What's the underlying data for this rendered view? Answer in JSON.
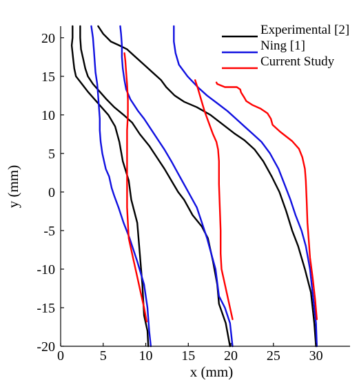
{
  "chart_data": {
    "type": "line",
    "xlabel": "x (mm)",
    "ylabel": "y (mm)",
    "xlim": [
      0,
      34
    ],
    "ylim": [
      -20,
      21.5
    ],
    "xticks": [
      "0",
      "5",
      "10",
      "15",
      "20",
      "25",
      "30"
    ],
    "yticks": [
      "20",
      "15",
      "10",
      "5",
      "0",
      "-5",
      "-10",
      "-15",
      "-20"
    ],
    "xtick_values": [
      0,
      5,
      10,
      15,
      20,
      25,
      30
    ],
    "ytick_values": [
      20,
      15,
      10,
      5,
      0,
      -5,
      -10,
      -15,
      -20
    ],
    "grid": false,
    "legend_position": "top-right",
    "series": [
      {
        "name": "Experimental [2]",
        "color": "#000000",
        "lines": [
          [
            [
              10.3,
              -20
            ],
            [
              10.2,
              -18
            ],
            [
              9.8,
              -16
            ],
            [
              9.6,
              -12
            ],
            [
              9.3,
              -8
            ],
            [
              9.0,
              -4
            ],
            [
              8.3,
              -1
            ],
            [
              8.0,
              1.5
            ],
            [
              7.3,
              4
            ],
            [
              6.9,
              6.5
            ],
            [
              6.4,
              8.5
            ],
            [
              5.6,
              10
            ],
            [
              4.8,
              11
            ],
            [
              4.0,
              12
            ],
            [
              3.2,
              13
            ],
            [
              2.5,
              14
            ],
            [
              1.8,
              15
            ],
            [
              1.6,
              16
            ],
            [
              1.5,
              17
            ],
            [
              1.4,
              18
            ],
            [
              1.3,
              19
            ],
            [
              1.4,
              20
            ],
            [
              1.4,
              21.5
            ]
          ],
          [
            [
              19.9,
              -20
            ],
            [
              19.4,
              -17
            ],
            [
              18.6,
              -14.5
            ],
            [
              18.4,
              -12
            ],
            [
              17.9,
              -9
            ],
            [
              17.3,
              -6
            ],
            [
              16.6,
              -4.5
            ],
            [
              15.5,
              -3
            ],
            [
              14.5,
              -1
            ],
            [
              13.8,
              0
            ],
            [
              13.0,
              1.5
            ],
            [
              12.2,
              3
            ],
            [
              11.3,
              4.5
            ],
            [
              10.4,
              6
            ],
            [
              9.3,
              7.5
            ],
            [
              8.4,
              9
            ],
            [
              7.4,
              10
            ],
            [
              6.3,
              11
            ],
            [
              5.4,
              12
            ],
            [
              4.6,
              13
            ],
            [
              3.8,
              14
            ],
            [
              3.2,
              15
            ],
            [
              2.9,
              16
            ],
            [
              2.6,
              17.5
            ],
            [
              2.4,
              18.5
            ],
            [
              2.3,
              20
            ],
            [
              2.3,
              21.5
            ]
          ],
          [
            [
              30.0,
              -20
            ],
            [
              29.8,
              -17
            ],
            [
              29.4,
              -13
            ],
            [
              28.7,
              -10
            ],
            [
              27.9,
              -7
            ],
            [
              27.2,
              -5
            ],
            [
              26.5,
              -2.5
            ],
            [
              25.7,
              0
            ],
            [
              24.8,
              2
            ],
            [
              23.8,
              4
            ],
            [
              22.8,
              5.5
            ],
            [
              21.6,
              6.7
            ],
            [
              20.4,
              7.6
            ],
            [
              19.0,
              8.8
            ],
            [
              17.6,
              10
            ],
            [
              16.0,
              11
            ],
            [
              14.5,
              11.7
            ],
            [
              13.4,
              12.5
            ],
            [
              12.4,
              13.6
            ],
            [
              11.8,
              14.5
            ],
            [
              10.8,
              15.5
            ],
            [
              9.8,
              16.5
            ],
            [
              8.8,
              17.5
            ],
            [
              7.8,
              18.5
            ],
            [
              6.9,
              19
            ],
            [
              5.9,
              19.5
            ],
            [
              5.0,
              20.5
            ],
            [
              4.4,
              21.5
            ]
          ]
        ]
      },
      {
        "name": "Ning [1]",
        "color": "#1010e0",
        "lines": [
          [
            [
              10.6,
              -20
            ],
            [
              10.4,
              -18
            ],
            [
              10.2,
              -15
            ],
            [
              9.8,
              -12
            ],
            [
              9.0,
              -9
            ],
            [
              8.1,
              -6
            ],
            [
              7.4,
              -4
            ],
            [
              6.8,
              -2
            ],
            [
              6.3,
              -0.5
            ],
            [
              6.0,
              0.5
            ],
            [
              5.7,
              2
            ],
            [
              5.3,
              3
            ],
            [
              5.1,
              4
            ],
            [
              4.9,
              5
            ],
            [
              4.7,
              6.5
            ],
            [
              4.6,
              8
            ],
            [
              4.6,
              9.5
            ],
            [
              4.5,
              11
            ],
            [
              4.4,
              12.5
            ],
            [
              4.3,
              14
            ],
            [
              4.1,
              15.5
            ],
            [
              4.0,
              17
            ],
            [
              3.9,
              18.5
            ],
            [
              3.8,
              20
            ],
            [
              3.6,
              21.5
            ]
          ],
          [
            [
              20.2,
              -20
            ],
            [
              19.9,
              -17
            ],
            [
              19.3,
              -15
            ],
            [
              18.6,
              -13.5
            ],
            [
              18.2,
              -10
            ],
            [
              17.7,
              -8
            ],
            [
              17.2,
              -6
            ],
            [
              16.6,
              -4
            ],
            [
              16.0,
              -2
            ],
            [
              15.0,
              0
            ],
            [
              14.0,
              2
            ],
            [
              13.0,
              4
            ],
            [
              12.2,
              5.5
            ],
            [
              11.6,
              6.5
            ],
            [
              10.7,
              8
            ],
            [
              9.8,
              9.5
            ],
            [
              9.1,
              10.5
            ],
            [
              8.2,
              12
            ],
            [
              7.7,
              13.3
            ],
            [
              7.5,
              14.5
            ],
            [
              7.3,
              16
            ],
            [
              7.2,
              17.5
            ],
            [
              7.2,
              19
            ],
            [
              7.1,
              20.5
            ],
            [
              7.0,
              21.5
            ]
          ],
          [
            [
              30.1,
              -20
            ],
            [
              30.0,
              -17
            ],
            [
              29.6,
              -13
            ],
            [
              29.3,
              -10
            ],
            [
              28.8,
              -7
            ],
            [
              28.3,
              -5
            ],
            [
              27.6,
              -3
            ],
            [
              27.0,
              -1
            ],
            [
              26.3,
              1
            ],
            [
              25.6,
              3
            ],
            [
              24.6,
              5
            ],
            [
              23.6,
              6.5
            ],
            [
              22.6,
              7.5
            ],
            [
              21.6,
              8.5
            ],
            [
              20.6,
              9.5
            ],
            [
              19.6,
              10.5
            ],
            [
              18.4,
              11.5
            ],
            [
              17.2,
              12.5
            ],
            [
              16.2,
              13.5
            ],
            [
              14.9,
              15
            ],
            [
              13.9,
              16.5
            ],
            [
              13.5,
              18
            ],
            [
              13.3,
              19.5
            ],
            [
              13.3,
              21.5
            ]
          ]
        ]
      },
      {
        "name": "Current Study",
        "color": "#ff0000",
        "lines": [
          [
            [
              10.1,
              -16.8
            ],
            [
              9.8,
              -15
            ],
            [
              9.4,
              -13
            ],
            [
              9.0,
              -11
            ],
            [
              8.6,
              -9
            ],
            [
              8.3,
              -7.5
            ],
            [
              8.0,
              -6
            ],
            [
              7.9,
              -4
            ],
            [
              7.8,
              -2
            ],
            [
              7.8,
              0
            ],
            [
              7.8,
              2
            ],
            [
              7.8,
              4
            ],
            [
              7.8,
              6
            ],
            [
              7.8,
              8
            ],
            [
              7.9,
              10
            ],
            [
              7.9,
              12
            ],
            [
              7.8,
              14
            ],
            [
              7.7,
              15.5
            ],
            [
              7.6,
              17
            ],
            [
              7.5,
              18
            ]
          ],
          [
            [
              20.2,
              -16.5
            ],
            [
              19.9,
              -15
            ],
            [
              19.5,
              -13
            ],
            [
              19.2,
              -11.5
            ],
            [
              18.9,
              -10
            ],
            [
              18.8,
              -8
            ],
            [
              18.8,
              -5
            ],
            [
              18.7,
              -2
            ],
            [
              18.6,
              1
            ],
            [
              18.6,
              4
            ],
            [
              18.5,
              5.5
            ],
            [
              18.3,
              6.5
            ],
            [
              17.9,
              7.5
            ],
            [
              17.4,
              9
            ],
            [
              16.9,
              10.5
            ],
            [
              16.5,
              12
            ],
            [
              16.1,
              13.5
            ],
            [
              15.8,
              14.5
            ]
          ],
          [
            [
              30.1,
              -16.5
            ],
            [
              29.9,
              -14
            ],
            [
              29.6,
              -11
            ],
            [
              29.3,
              -8.5
            ],
            [
              29.2,
              -7
            ],
            [
              29.0,
              -4
            ],
            [
              28.9,
              -1
            ],
            [
              28.8,
              1.5
            ],
            [
              28.7,
              3
            ],
            [
              28.4,
              4.5
            ],
            [
              28.0,
              5.6
            ],
            [
              27.2,
              6.6
            ],
            [
              25.8,
              7.8
            ],
            [
              24.9,
              8.7
            ],
            [
              24.7,
              9.5
            ],
            [
              24.3,
              10.2
            ],
            [
              23.5,
              10.8
            ],
            [
              22.5,
              11.3
            ],
            [
              21.8,
              11.8
            ],
            [
              21.6,
              12.2
            ],
            [
              21.2,
              12.9
            ],
            [
              21.1,
              13.3
            ],
            [
              20.7,
              13.6
            ],
            [
              19.3,
              13.6
            ],
            [
              18.4,
              14
            ],
            [
              18.3,
              14.2
            ]
          ]
        ]
      }
    ]
  }
}
